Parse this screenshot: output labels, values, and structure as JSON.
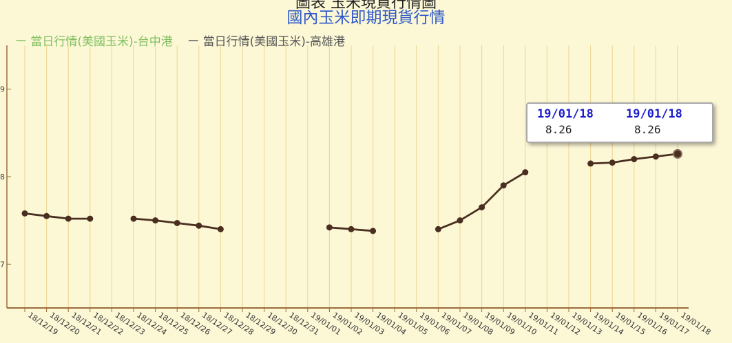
{
  "header": {
    "top_cut_text": "圖表 玉米現貨行情圖",
    "title": "國內玉米即期現貨行情"
  },
  "legend": [
    {
      "label": "當日行情(美國玉米)-台中港",
      "color": "#7fbf5f"
    },
    {
      "label": "當日行情(美國玉米)-高雄港",
      "color": "#555555"
    }
  ],
  "tooltip": {
    "columns": [
      {
        "date": "19/01/18",
        "value": "8.26"
      },
      {
        "date": "19/01/18",
        "value": "8.26"
      }
    ]
  },
  "chart_data": {
    "type": "line",
    "title": "國內玉米即期現貨行情",
    "ylim": [
      6.5,
      9.5
    ],
    "y_ticks": [
      7,
      8,
      9
    ],
    "grid": true,
    "categories": [
      "18/12/19",
      "18/12/20",
      "18/12/21",
      "18/12/22",
      "18/12/23",
      "18/12/24",
      "18/12/25",
      "18/12/26",
      "18/12/27",
      "18/12/28",
      "18/12/29",
      "18/12/30",
      "18/12/31",
      "19/01/01",
      "19/01/02",
      "19/01/03",
      "19/01/04",
      "19/01/05",
      "19/01/06",
      "19/01/07",
      "19/01/08",
      "19/01/09",
      "19/01/10",
      "19/01/11",
      "19/01/12",
      "19/01/13",
      "19/01/14",
      "19/01/15",
      "19/01/16",
      "19/01/17",
      "19/01/18"
    ],
    "series": [
      {
        "name": "當日行情(美國玉米)-高雄港",
        "color": "#4a2f20",
        "values": [
          7.58,
          7.55,
          7.52,
          7.52,
          null,
          7.52,
          7.5,
          7.47,
          7.44,
          7.4,
          null,
          null,
          null,
          null,
          7.42,
          7.4,
          7.38,
          null,
          null,
          7.4,
          7.5,
          7.65,
          7.9,
          8.05,
          null,
          null,
          8.15,
          8.16,
          8.2,
          8.23,
          8.26
        ]
      }
    ]
  }
}
